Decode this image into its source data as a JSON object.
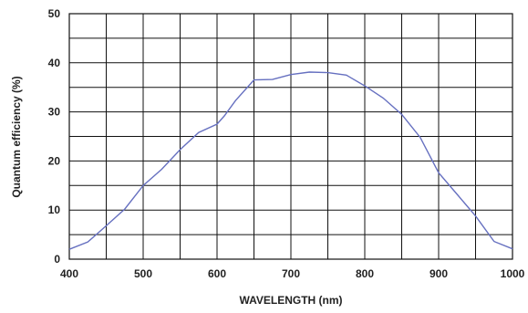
{
  "chart_data": {
    "type": "line",
    "title": "",
    "xlabel": "WAVELENGTH (nm)",
    "ylabel": "Quantum efficiency (%)",
    "xlim": [
      400,
      1000
    ],
    "ylim": [
      0,
      50
    ],
    "x_ticks": [
      400,
      500,
      600,
      700,
      800,
      900,
      1000
    ],
    "y_ticks": [
      0,
      10,
      20,
      30,
      40,
      50
    ],
    "grid": true,
    "line_color": "#6670c0",
    "series": [
      {
        "x": [
          400,
          425,
          450,
          475,
          500,
          525,
          550,
          575,
          600,
          610,
          625,
          650,
          675,
          700,
          725,
          750,
          775,
          800,
          825,
          850,
          875,
          900,
          925,
          950,
          975,
          1000
        ],
        "y": [
          2.0,
          3.5,
          6.8,
          10.2,
          15.0,
          18.3,
          22.3,
          25.8,
          27.5,
          29.2,
          32.3,
          36.5,
          36.6,
          37.6,
          38.1,
          38.0,
          37.5,
          35.3,
          32.8,
          29.5,
          24.8,
          17.6,
          13.2,
          8.8,
          3.6,
          2.1
        ]
      }
    ]
  }
}
